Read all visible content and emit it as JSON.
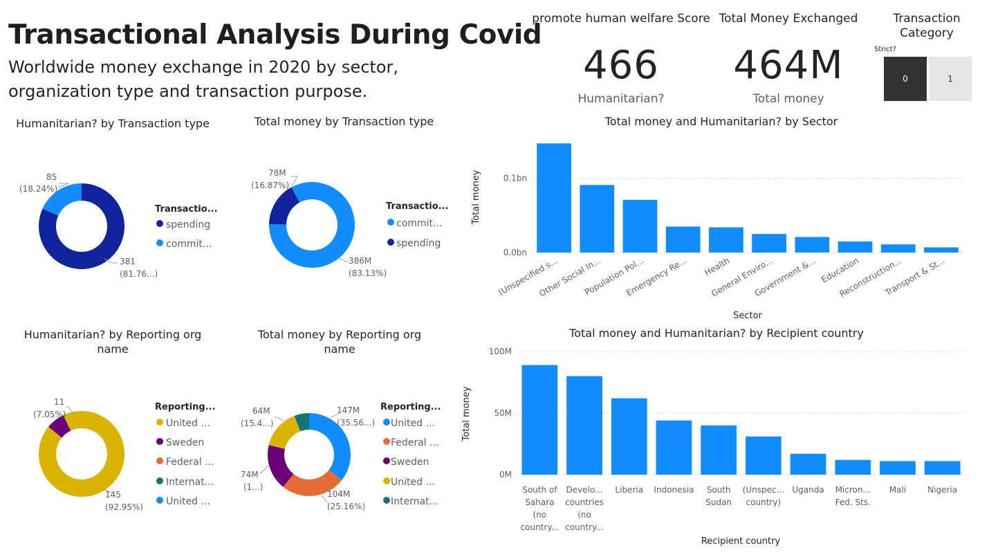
{
  "header": {
    "title": "Transactional Analysis During Covid",
    "subtitle": "Worldwide money exchange in 2020 by sector, organization type and transaction purpose."
  },
  "kpis": [
    {
      "heading": "promote human welfare Score",
      "value": "466",
      "label": "Humanitarian?"
    },
    {
      "heading": "Total Money Exchanged",
      "value": "464M",
      "label": "Total money"
    }
  ],
  "slicer": {
    "title": "Transaction Category",
    "field_label": "Strict?",
    "options": [
      {
        "label": "0",
        "selected": true
      },
      {
        "label": "1",
        "selected": false
      }
    ]
  },
  "colors": {
    "dark_blue": "#12239E",
    "blue": "#118DFF",
    "orange": "#E66C37",
    "purple": "#6B007B",
    "gold": "#D9B300",
    "teal": "#197278"
  },
  "chart_data": [
    {
      "id": "hum-by-type",
      "type": "pie",
      "title": "Humanitarian? by Transaction type",
      "legend_title": "Transactio...",
      "legend": [
        "spending",
        "commit..."
      ],
      "slices": [
        {
          "name": "spending",
          "value": 381,
          "label": "381",
          "pct": "(81.76...)",
          "color": "#12239E"
        },
        {
          "name": "commit...",
          "value": 85,
          "label": "85",
          "pct": "(18.24%)",
          "color": "#118DFF"
        }
      ]
    },
    {
      "id": "money-by-type",
      "type": "pie",
      "title": "Total money by Transaction type",
      "legend_title": "Transactio...",
      "legend": [
        "commit...",
        "spending"
      ],
      "slices": [
        {
          "name": "commit...",
          "value": 386,
          "label": "386M",
          "pct": "(83.13%)",
          "color": "#118DFF"
        },
        {
          "name": "spending",
          "value": 78,
          "label": "78M",
          "pct": "(16.87%)",
          "color": "#12239E"
        }
      ]
    },
    {
      "id": "hum-by-org",
      "type": "pie",
      "title": "Humanitarian? by Reporting org name",
      "legend_title": "Reporting...",
      "legend": [
        "United ...",
        "Sweden",
        "Federal ...",
        "Internat...",
        "United ..."
      ],
      "legend_colors": [
        "#D9B300",
        "#6B007B",
        "#E66C37",
        "#197278",
        "#118DFF"
      ],
      "slices": [
        {
          "name": "United ...",
          "value": 145,
          "label": "145",
          "pct": "(92.95%)",
          "color": "#D9B300"
        },
        {
          "name": "Sweden",
          "value": 11,
          "label": "11",
          "pct": "(7.05%)",
          "color": "#6B007B"
        }
      ]
    },
    {
      "id": "money-by-org",
      "type": "pie",
      "title": "Total money by Reporting org name",
      "legend_title": "Reporting...",
      "legend": [
        "United ...",
        "Federal ...",
        "Sweden",
        "United ...",
        "Internat..."
      ],
      "legend_colors": [
        "#118DFF",
        "#E66C37",
        "#6B007B",
        "#D9B300",
        "#197278"
      ],
      "slices": [
        {
          "name": "United ...",
          "value": 147,
          "label": "147M",
          "pct": "(35.56...)",
          "color": "#118DFF"
        },
        {
          "name": "Federal ...",
          "value": 104,
          "label": "104M",
          "pct": "(25.16%)",
          "color": "#E66C37"
        },
        {
          "name": "Sweden",
          "value": 74,
          "label": "74M",
          "pct": "(1...)",
          "color": "#6B007B"
        },
        {
          "name": "United ...",
          "value": 64,
          "label": "64M",
          "pct": "(15.4...)",
          "color": "#D9B300"
        },
        {
          "name": "Internat...",
          "value": 24,
          "label": "",
          "pct": "",
          "color": "#197278"
        }
      ]
    },
    {
      "id": "money-by-sector",
      "type": "bar",
      "title": "Total money and Humanitarian? by Sector",
      "xlabel": "Sector",
      "ylabel": "Total money",
      "ylim": [
        0,
        0.15
      ],
      "yticks": [
        {
          "value": 0,
          "label": "0.0bn"
        },
        {
          "value": 0.1,
          "label": "0.1bn"
        }
      ],
      "categories": [
        "(Unspecified s...",
        "Other Social In...",
        "Population Pol...",
        "Emergency Re...",
        "Health",
        "General Enviro...",
        "Government &...",
        "Education",
        "Reconstruction...",
        "Transport & St..."
      ],
      "values": [
        0.147,
        0.091,
        0.071,
        0.035,
        0.034,
        0.025,
        0.021,
        0.015,
        0.011,
        0.007
      ],
      "color": "#118DFF"
    },
    {
      "id": "money-by-country",
      "type": "bar",
      "title": "Total money and Humanitarian? by Recipient country",
      "xlabel": "Recipient country",
      "ylabel": "Total money",
      "ylim": [
        0,
        100
      ],
      "yticks": [
        {
          "value": 0,
          "label": "0M"
        },
        {
          "value": 50,
          "label": "50M"
        },
        {
          "value": 100,
          "label": "100M"
        }
      ],
      "categories": [
        [
          "South of",
          "Sahara",
          "(no",
          "country..."
        ],
        [
          "Develo...",
          "countries",
          "(no",
          "country..."
        ],
        [
          "Liberia"
        ],
        [
          "Indonesia"
        ],
        [
          "South",
          "Sudan"
        ],
        [
          "(Unspec...",
          "country)"
        ],
        [
          "Uganda"
        ],
        [
          "Micron...",
          "Fed. Sts."
        ],
        [
          "Mali"
        ],
        [
          "Nigeria"
        ]
      ],
      "values": [
        89,
        80,
        62,
        44,
        40,
        31,
        17,
        12,
        11,
        11
      ],
      "color": "#118DFF"
    }
  ]
}
